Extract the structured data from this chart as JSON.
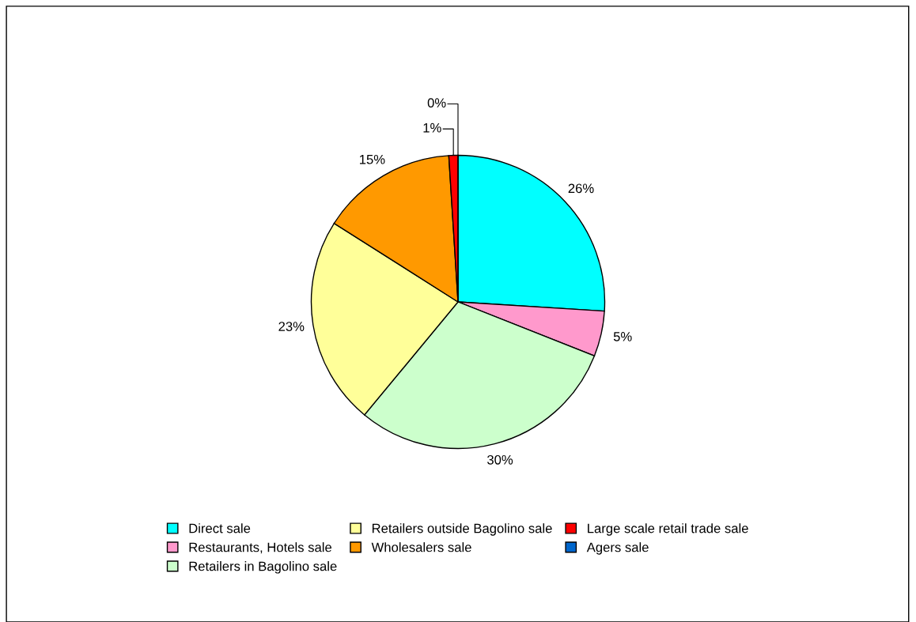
{
  "chart_data": {
    "type": "pie",
    "categories": [
      "Direct sale",
      "Restaurants, Hotels sale",
      "Retailers in Bagolino sale",
      "Retailers outside Bagolino sale",
      "Wholesalers sale",
      "Large scale retail trade sale",
      "Agers sale"
    ],
    "values": [
      26,
      5,
      30,
      23,
      15,
      1,
      0
    ],
    "colors": [
      "#00ffff",
      "#ff99cc",
      "#ccffcc",
      "#ffff99",
      "#ff9900",
      "#ff0000",
      "#0066cc"
    ],
    "value_labels": [
      "26%",
      "5%",
      "30%",
      "23%",
      "15%",
      "1%",
      "0%"
    ],
    "legend": "bottom"
  }
}
